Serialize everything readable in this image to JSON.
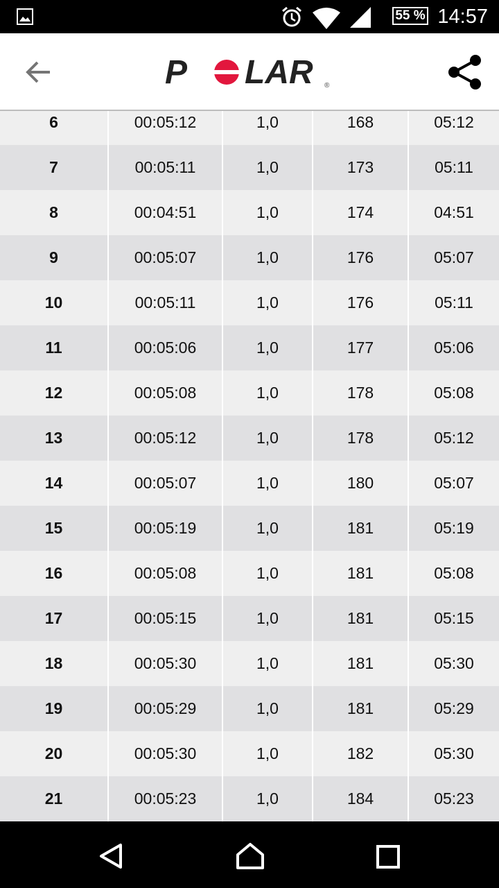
{
  "status_bar": {
    "time": "14:57",
    "battery": "55 %",
    "icons": [
      "image-icon",
      "alarm-icon",
      "wifi-icon",
      "signal-icon",
      "battery-icon"
    ]
  },
  "app_bar": {
    "logo": "POLAR",
    "brand_color": "#e2173d",
    "back_icon": "arrow-left-icon",
    "share_icon": "share-icon"
  },
  "laps": [
    [
      "6",
      "00:05:12",
      "1,0",
      "168",
      "05:12"
    ],
    [
      "7",
      "00:05:11",
      "1,0",
      "173",
      "05:11"
    ],
    [
      "8",
      "00:04:51",
      "1,0",
      "174",
      "04:51"
    ],
    [
      "9",
      "00:05:07",
      "1,0",
      "176",
      "05:07"
    ],
    [
      "10",
      "00:05:11",
      "1,0",
      "176",
      "05:11"
    ],
    [
      "11",
      "00:05:06",
      "1,0",
      "177",
      "05:06"
    ],
    [
      "12",
      "00:05:08",
      "1,0",
      "178",
      "05:08"
    ],
    [
      "13",
      "00:05:12",
      "1,0",
      "178",
      "05:12"
    ],
    [
      "14",
      "00:05:07",
      "1,0",
      "180",
      "05:07"
    ],
    [
      "15",
      "00:05:19",
      "1,0",
      "181",
      "05:19"
    ],
    [
      "16",
      "00:05:08",
      "1,0",
      "181",
      "05:08"
    ],
    [
      "17",
      "00:05:15",
      "1,0",
      "181",
      "05:15"
    ],
    [
      "18",
      "00:05:30",
      "1,0",
      "181",
      "05:30"
    ],
    [
      "19",
      "00:05:29",
      "1,0",
      "181",
      "05:29"
    ],
    [
      "20",
      "00:05:30",
      "1,0",
      "182",
      "05:30"
    ],
    [
      "21",
      "00:05:23",
      "1,0",
      "184",
      "05:23"
    ]
  ],
  "nav_bar": {
    "icons": [
      "back-triangle-icon",
      "home-icon",
      "recents-icon"
    ]
  }
}
